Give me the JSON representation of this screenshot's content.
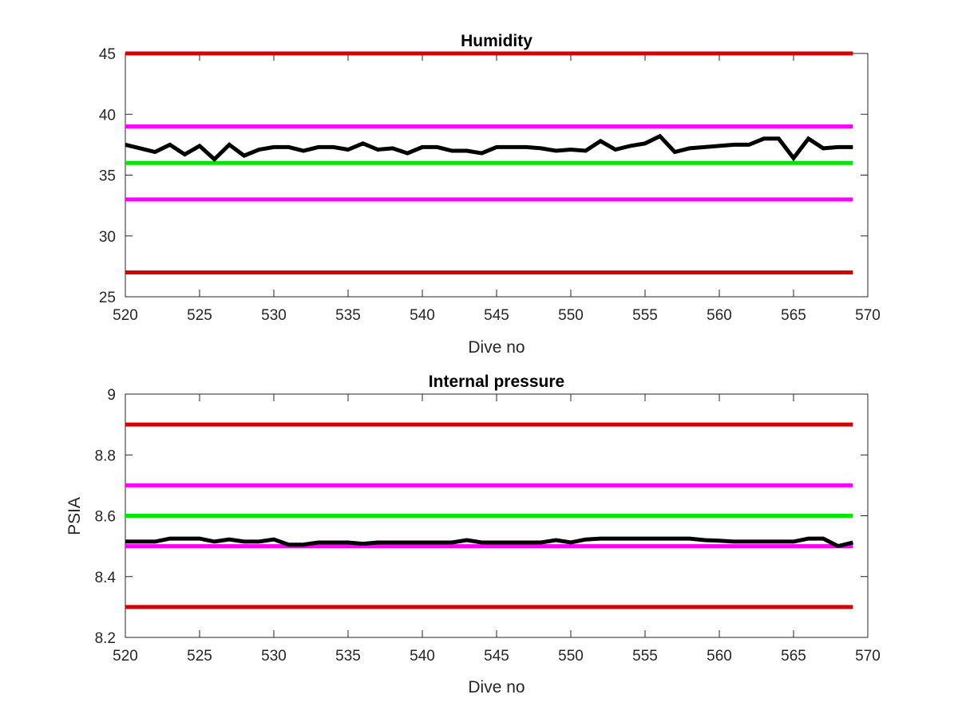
{
  "chart_data": [
    {
      "type": "line",
      "title": "Humidity",
      "xlabel": "Dive no",
      "ylabel": "",
      "xlim": [
        520,
        570
      ],
      "ylim": [
        25,
        45
      ],
      "xticks": [
        "520",
        "525",
        "530",
        "535",
        "540",
        "545",
        "550",
        "555",
        "560",
        "565",
        "570"
      ],
      "yticks": [
        "25",
        "30",
        "35",
        "40",
        "45"
      ],
      "grid": false,
      "reference_lines": [
        {
          "y": 45,
          "color": "#d40000"
        },
        {
          "y": 39,
          "color": "#ff00ff"
        },
        {
          "y": 36,
          "color": "#00e600"
        },
        {
          "y": 33,
          "color": "#ff00ff"
        },
        {
          "y": 27,
          "color": "#d40000"
        }
      ],
      "series": [
        {
          "color": "#000000",
          "x": [
            520,
            521,
            522,
            523,
            524,
            525,
            526,
            527,
            528,
            529,
            530,
            531,
            532,
            533,
            534,
            535,
            536,
            537,
            538,
            539,
            540,
            541,
            542,
            543,
            544,
            545,
            546,
            547,
            548,
            549,
            550,
            551,
            552,
            553,
            554,
            555,
            556,
            557,
            558,
            559,
            560,
            561,
            562,
            563,
            564,
            565,
            566,
            567,
            568,
            569
          ],
          "values": [
            37.5,
            37.2,
            36.9,
            37.5,
            36.7,
            37.4,
            36.3,
            37.5,
            36.6,
            37.1,
            37.3,
            37.3,
            37.0,
            37.3,
            37.3,
            37.1,
            37.6,
            37.1,
            37.2,
            36.8,
            37.3,
            37.3,
            37.0,
            37.0,
            36.8,
            37.3,
            37.3,
            37.3,
            37.2,
            37.0,
            37.1,
            37.0,
            37.8,
            37.1,
            37.4,
            37.6,
            38.2,
            36.9,
            37.2,
            37.3,
            37.4,
            37.5,
            37.5,
            38.0,
            38.0,
            36.4,
            38.0,
            37.2,
            37.3,
            37.3
          ]
        }
      ]
    },
    {
      "type": "line",
      "title": "Internal pressure",
      "xlabel": "Dive no",
      "ylabel": "PSIA",
      "xlim": [
        520,
        570
      ],
      "ylim": [
        8.2,
        9
      ],
      "xticks": [
        "520",
        "525",
        "530",
        "535",
        "540",
        "545",
        "550",
        "555",
        "560",
        "565",
        "570"
      ],
      "yticks": [
        "8.2",
        "8.4",
        "8.6",
        "8.8",
        "9"
      ],
      "grid": false,
      "reference_lines": [
        {
          "y": 8.9,
          "color": "#d40000"
        },
        {
          "y": 8.7,
          "color": "#ff00ff"
        },
        {
          "y": 8.6,
          "color": "#00e600"
        },
        {
          "y": 8.5,
          "color": "#ff00ff"
        },
        {
          "y": 8.3,
          "color": "#d40000"
        }
      ],
      "series": [
        {
          "color": "#000000",
          "x": [
            520,
            521,
            522,
            523,
            524,
            525,
            526,
            527,
            528,
            529,
            530,
            531,
            532,
            533,
            534,
            535,
            536,
            537,
            538,
            539,
            540,
            541,
            542,
            543,
            544,
            545,
            546,
            547,
            548,
            549,
            550,
            551,
            552,
            553,
            554,
            555,
            556,
            557,
            558,
            559,
            560,
            561,
            562,
            563,
            564,
            565,
            566,
            567,
            568,
            569
          ],
          "values": [
            8.515,
            8.515,
            8.515,
            8.525,
            8.525,
            8.525,
            8.515,
            8.522,
            8.515,
            8.515,
            8.522,
            8.505,
            8.505,
            8.512,
            8.512,
            8.512,
            8.508,
            8.512,
            8.512,
            8.512,
            8.512,
            8.512,
            8.512,
            8.52,
            8.512,
            8.512,
            8.512,
            8.512,
            8.512,
            8.52,
            8.512,
            8.522,
            8.525,
            8.525,
            8.525,
            8.525,
            8.525,
            8.525,
            8.525,
            8.52,
            8.518,
            8.515,
            8.515,
            8.515,
            8.515,
            8.515,
            8.525,
            8.525,
            8.5,
            8.512
          ]
        }
      ]
    }
  ]
}
